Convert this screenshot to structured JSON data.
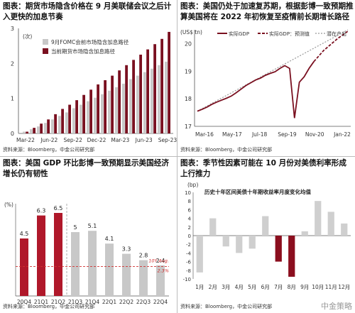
{
  "watermark": "中金策略",
  "panels": [
    {
      "title": "图表：期货市场隐含价格在 9 月美联储会议之后计入更快的加息节奏",
      "source": "资料来源：Bloomberg，中金公司研究部",
      "chart_data": {
        "type": "bar",
        "ylabel": "(次)",
        "ylim": [
          0,
          3
        ],
        "yticks": [
          "0",
          "1",
          "2",
          "3"
        ],
        "xtick_labels": [
          "Mar-22",
          "Jun-22",
          "Sep-22",
          "Dec-22",
          "Mar-23",
          "Jun-23",
          "Sep-23"
        ],
        "legend": [
          "9月FOMC会前市场隐含加息路径",
          "当前期货市场隐含加息路径"
        ],
        "colors": {
          "before": "#c8c8c8",
          "current": "#7a1020"
        },
        "series": [
          {
            "name": "9月FOMC会前市场隐含加息路径",
            "values": [
              0.05,
              0.12,
              0.2,
              0.3,
              0.4,
              0.5,
              0.6,
              0.72,
              0.82,
              0.92,
              1.02,
              1.12,
              1.22,
              1.32,
              1.42,
              1.55,
              1.65,
              1.75,
              1.85,
              1.95,
              2.05
            ]
          },
          {
            "name": "当前期货市场隐含加息路径",
            "values": [
              0.05,
              0.16,
              0.28,
              0.4,
              0.55,
              0.7,
              0.82,
              0.95,
              1.1,
              1.25,
              1.4,
              1.52,
              1.65,
              1.8,
              1.95,
              2.1,
              2.25,
              2.4,
              2.55,
              2.7,
              2.9
            ]
          }
        ]
      }
    },
    {
      "title": "图表：美国仍处于加速复苏期，根据彭博一致预期推算美国将在 2022 年初恢复至疫情前长期增长路径",
      "source": "资料来源：Bloomberg，中金公司研究部",
      "chart_data": {
        "type": "line",
        "ylabel": "(US$ tn)",
        "ylim": [
          17,
          20.5
        ],
        "yticks": [
          17,
          18,
          19,
          20
        ],
        "xtick_labels": [
          "Mar-16",
          "May-17",
          "Jul-18",
          "Sep-19",
          "Nov-20",
          "Jan-22"
        ],
        "legend": [
          "实际GDP",
          "实际GDP：预测值",
          "潜在产出"
        ],
        "colors": {
          "actual": "#7a1020",
          "forecast": "#7a1020",
          "potential": "#999999"
        },
        "actual": [
          17.55,
          17.62,
          17.7,
          17.8,
          17.88,
          17.95,
          18.02,
          18.1,
          18.22,
          18.35,
          18.48,
          18.58,
          18.68,
          18.75,
          18.85,
          18.92,
          18.98,
          19.1,
          19.2,
          19.1,
          17.3,
          18.6,
          18.8,
          19.1,
          19.35
        ],
        "forecast": [
          19.35,
          19.55,
          19.75,
          19.9,
          20.05,
          20.2,
          20.32,
          20.45
        ],
        "potential": [
          17.55,
          20.5
        ]
      }
    },
    {
      "title": "图表：美国 GDP 环比彭博一致预期显示美国经济增长仍有韧性",
      "source": "资料来源：Bloomberg，中金公司研究部",
      "chart_data": {
        "type": "bar",
        "ylabel": "(%)",
        "ylim": [
          0,
          7
        ],
        "categories": [
          "20Q4",
          "21Q1",
          "21Q2",
          "21Q3",
          "21Q4",
          "22Q1",
          "22Q2",
          "22Q3",
          "22Q4"
        ],
        "values": [
          4.5,
          6.3,
          6.5,
          5.0,
          5.1,
          4.1,
          3.3,
          2.8,
          2.4
        ],
        "value_labels": [
          "4.5",
          "6.3",
          "6.5",
          "5",
          "5.1",
          "4.1",
          "3.3",
          "2.8",
          "2.4"
        ],
        "actual_count": 3,
        "avg_value": 2.3,
        "avg_label_1": "10Y Avg.",
        "avg_label_2": "2.3%",
        "colors": {
          "actual": "#b0182a",
          "forecast": "#c8c8c8",
          "avg": "#d03030"
        }
      }
    },
    {
      "title": "图表：季节性因素可能在 10 月份对美债利率形成上行推力",
      "source": "资料来源：Bloomberg，中金公司研究部",
      "chart_data": {
        "type": "bar",
        "subtitle": "历史十年区间美债十年期收益率月度变化均值",
        "ylabel": "(bp)",
        "ylim": [
          -10,
          10
        ],
        "yticks": [
          "10",
          "8",
          "6",
          "4",
          "2",
          "0",
          "-2",
          "-4",
          "-6",
          "-8",
          "-10"
        ],
        "categories": [
          "1月",
          "2月",
          "3月",
          "4月",
          "5月",
          "6月",
          "7月",
          "8月",
          "9月",
          "10月",
          "11月",
          "12月"
        ],
        "values": [
          -8.5,
          4.0,
          -2.5,
          -4.0,
          -3.0,
          4.5,
          -6.0,
          -9.5,
          1.0,
          8.0,
          5.5,
          2.8
        ],
        "highlight": [
          6,
          7
        ],
        "colors": {
          "normal": "#cfcfcf",
          "highlight": "#8b0e1e"
        }
      }
    }
  ]
}
